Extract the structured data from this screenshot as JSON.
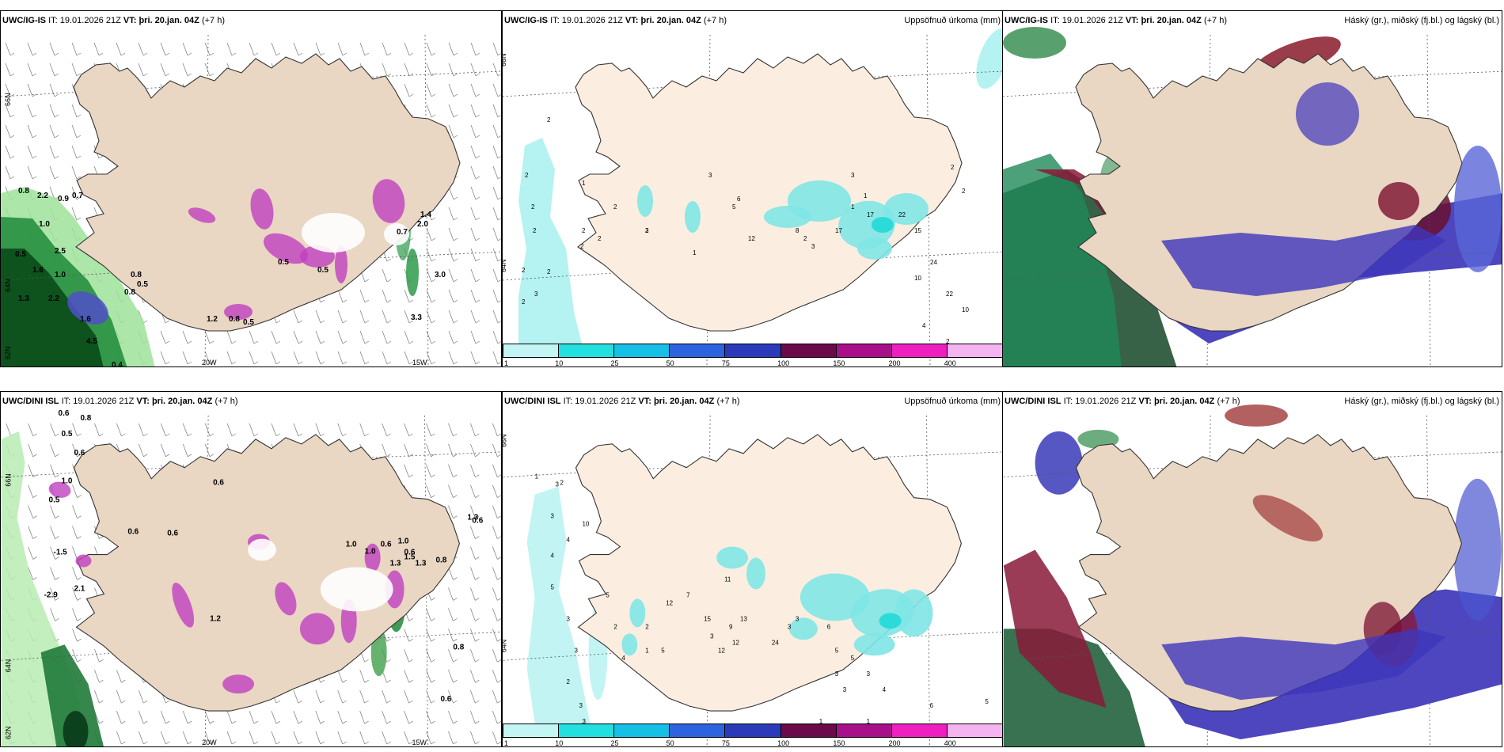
{
  "rows": [
    {
      "model": "UWC/IG-IS",
      "it_label": "IT:",
      "it_value": "19.01.2026 21Z",
      "vt_label": "VT:",
      "vt_value": "þri. 20.jan. 04Z",
      "lead": "(+7 h)"
    },
    {
      "model": "UWC/DINI ISL",
      "it_label": "IT:",
      "it_value": "19.01.2026 21Z",
      "vt_label": "VT:",
      "vt_value": "þri. 20.jan. 04Z",
      "lead": "(+7 h)"
    }
  ],
  "precip_title": "Uppsöfnuð úrkoma (mm)",
  "cloud_title": "Háský (gr.), miðský (fj.bl.) og lágský (bl.)",
  "colorbar": {
    "labels": [
      "1",
      "10",
      "25",
      "50",
      "75",
      "100",
      "150",
      "200",
      "400"
    ],
    "colors": [
      "#c4f5f5",
      "#22e0e0",
      "#16bfe6",
      "#2e63e0",
      "#2a3ab8",
      "#6a0a4a",
      "#a8108a",
      "#ee20c0",
      "#f4b4f0"
    ]
  },
  "axes": {
    "lat_66": "66N",
    "lat_64": "64N",
    "lat_62": "62N",
    "lon_20": "20W",
    "lon_15": "15W"
  },
  "top_left_labels": [
    "0.8",
    "2.2",
    "0.9",
    "0.7",
    "1.0",
    "0.5",
    "2.5",
    "1.6",
    "1.0",
    "0.8",
    "0.5",
    "0.8",
    "1.3",
    "2.2",
    "1.6",
    "4.5",
    "0.4",
    "1.2",
    "0.8",
    "0.5",
    "0.5",
    "0.5",
    "3.0",
    "2.0",
    "0.7",
    "1.4",
    "3.3"
  ],
  "bottom_left_labels": [
    "0.6",
    "0.8",
    "0.5",
    "0.6",
    "1.0",
    "0.5",
    "-1.5",
    "-2.9",
    "2.1",
    "0.6",
    "0.6",
    "0.6",
    "1.2",
    "0.6",
    "1.0",
    "1.3",
    "1.0",
    "1.0",
    "0.6",
    "1.5",
    "1.3",
    "0.8",
    "1.3",
    "0.6",
    "0.8",
    "0.6"
  ],
  "top_mid_labels": [
    "2",
    "2",
    "2",
    "2",
    "2",
    "2",
    "2",
    "3",
    "1",
    "2",
    "2",
    "2",
    "2",
    "2",
    "3",
    "1",
    "6",
    "8",
    "2",
    "3",
    "17",
    "17",
    "22",
    "15",
    "24",
    "22",
    "10",
    "10",
    "4",
    "2",
    "3",
    "1",
    "1",
    "2",
    "2",
    "5",
    "3",
    "12"
  ],
  "bottom_mid_labels": [
    "1",
    "3",
    "2",
    "3",
    "4",
    "4",
    "10",
    "5",
    "3",
    "3",
    "2",
    "3",
    "3",
    "2",
    "5",
    "4",
    "2",
    "1",
    "12",
    "7",
    "15",
    "5",
    "12",
    "12",
    "13",
    "24",
    "11",
    "9",
    "3",
    "3",
    "3",
    "6",
    "5",
    "5",
    "3",
    "3",
    "3",
    "4",
    "1",
    "1",
    "6",
    "5"
  ]
}
